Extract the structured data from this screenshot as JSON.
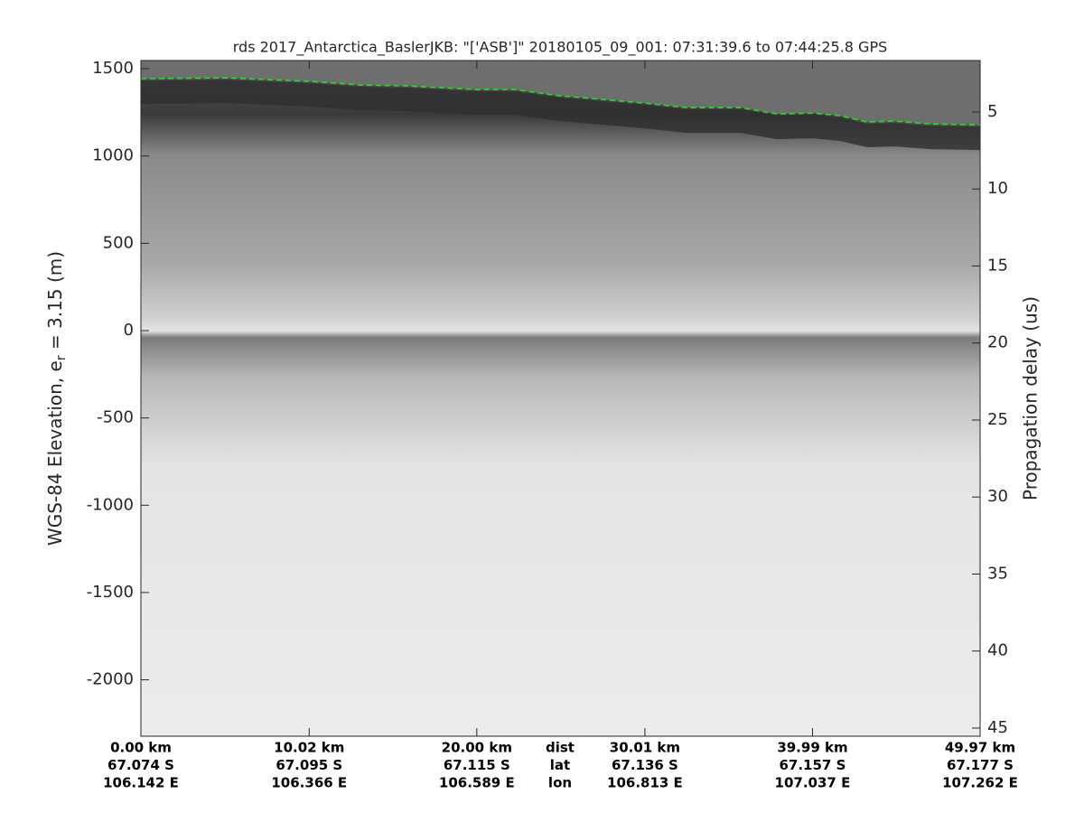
{
  "chart_data": {
    "type": "radargram",
    "title": "rds 2017_Antarctica_BaslerJKB: \"['ASB']\"  20180105_09_001: 07:31:39.6 to 07:44:25.8 GPS",
    "ylabel": {
      "text": "WGS-84 Elevation, e",
      "subscript": "r",
      "suffix": " = 3.15 (m)"
    },
    "y2label": "Propagation delay (us)",
    "xlim": [
      0,
      49.97
    ],
    "ylim": [
      -2323,
      1547
    ],
    "yticks": [
      1500,
      1000,
      500,
      0,
      -500,
      -1000,
      -1500,
      -2000
    ],
    "y2lim": [
      1.66,
      45.53
    ],
    "y2_inverted": true,
    "y2ticks": [
      5,
      10,
      15,
      20,
      25,
      30,
      35,
      40,
      45
    ],
    "xtick_row_labels": [
      "dist",
      "lat",
      "lon"
    ],
    "xticks": [
      {
        "value": 0,
        "label": "0.00 km",
        "lat": "67.074 S",
        "lon": "106.142 E"
      },
      {
        "value": 10.02,
        "label": "10.02 km",
        "lat": "67.095 S",
        "lon": "106.366 E"
      },
      {
        "value": 20.0,
        "label": "20.00 km",
        "lat": "67.115 S",
        "lon": "106.589 E"
      },
      {
        "value": 30.01,
        "label": "30.01 km",
        "lat": "67.136 S",
        "lon": "106.813 E"
      },
      {
        "value": 39.99,
        "label": "39.99 km",
        "lat": "67.157 S",
        "lon": "107.037 E"
      },
      {
        "value": 49.97,
        "label": "49.97 km",
        "lat": "67.177 S",
        "lon": "107.262 E"
      }
    ],
    "series": [
      {
        "name": "surface",
        "color": "#22dd22",
        "x": [
          0,
          5.06,
          10.06,
          13.12,
          15.81,
          20.01,
          22.27,
          24.96,
          30.01,
          32.49,
          35.72,
          37.87,
          40.02,
          41.63,
          43.25,
          44.86,
          47.01,
          49.97
        ],
        "values": [
          1443,
          1448,
          1428,
          1407,
          1402,
          1381,
          1381,
          1345,
          1303,
          1277,
          1277,
          1241,
          1246,
          1231,
          1195,
          1200,
          1184,
          1179
        ]
      }
    ]
  }
}
